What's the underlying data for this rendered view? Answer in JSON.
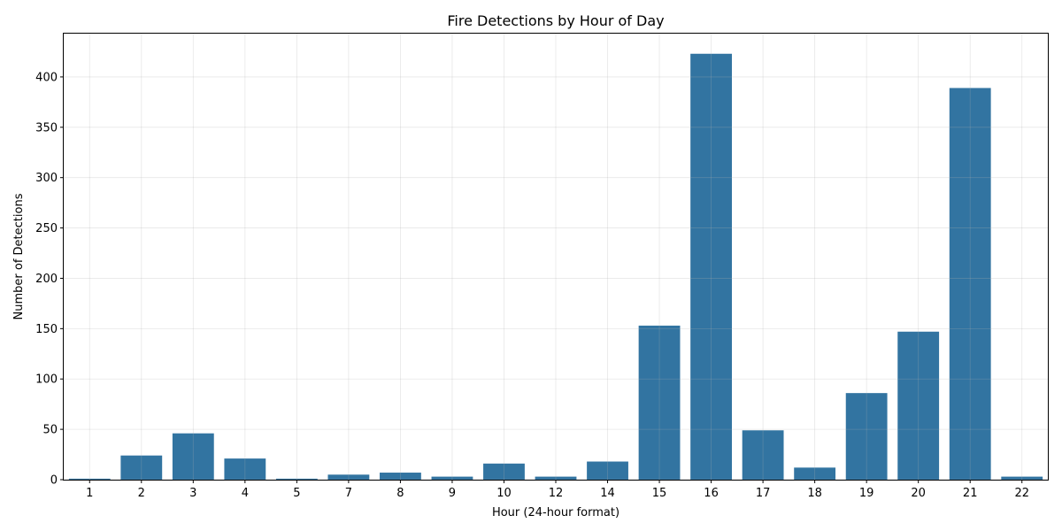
{
  "chart_data": {
    "type": "bar",
    "title": "Fire Detections by Hour of Day",
    "xlabel": "Hour (24-hour format)",
    "ylabel": "Number of Detections",
    "categories": [
      "1",
      "2",
      "3",
      "4",
      "5",
      "7",
      "8",
      "9",
      "10",
      "12",
      "14",
      "15",
      "16",
      "17",
      "18",
      "19",
      "20",
      "21",
      "22"
    ],
    "values": [
      1,
      24,
      46,
      21,
      1,
      5,
      7,
      3,
      16,
      3,
      18,
      153,
      423,
      49,
      12,
      86,
      147,
      389,
      3
    ],
    "ylim": [
      0,
      443
    ],
    "yticks": [
      0,
      50,
      100,
      150,
      200,
      250,
      300,
      350,
      400
    ],
    "grid": true,
    "bar_color": "#3274a1"
  }
}
